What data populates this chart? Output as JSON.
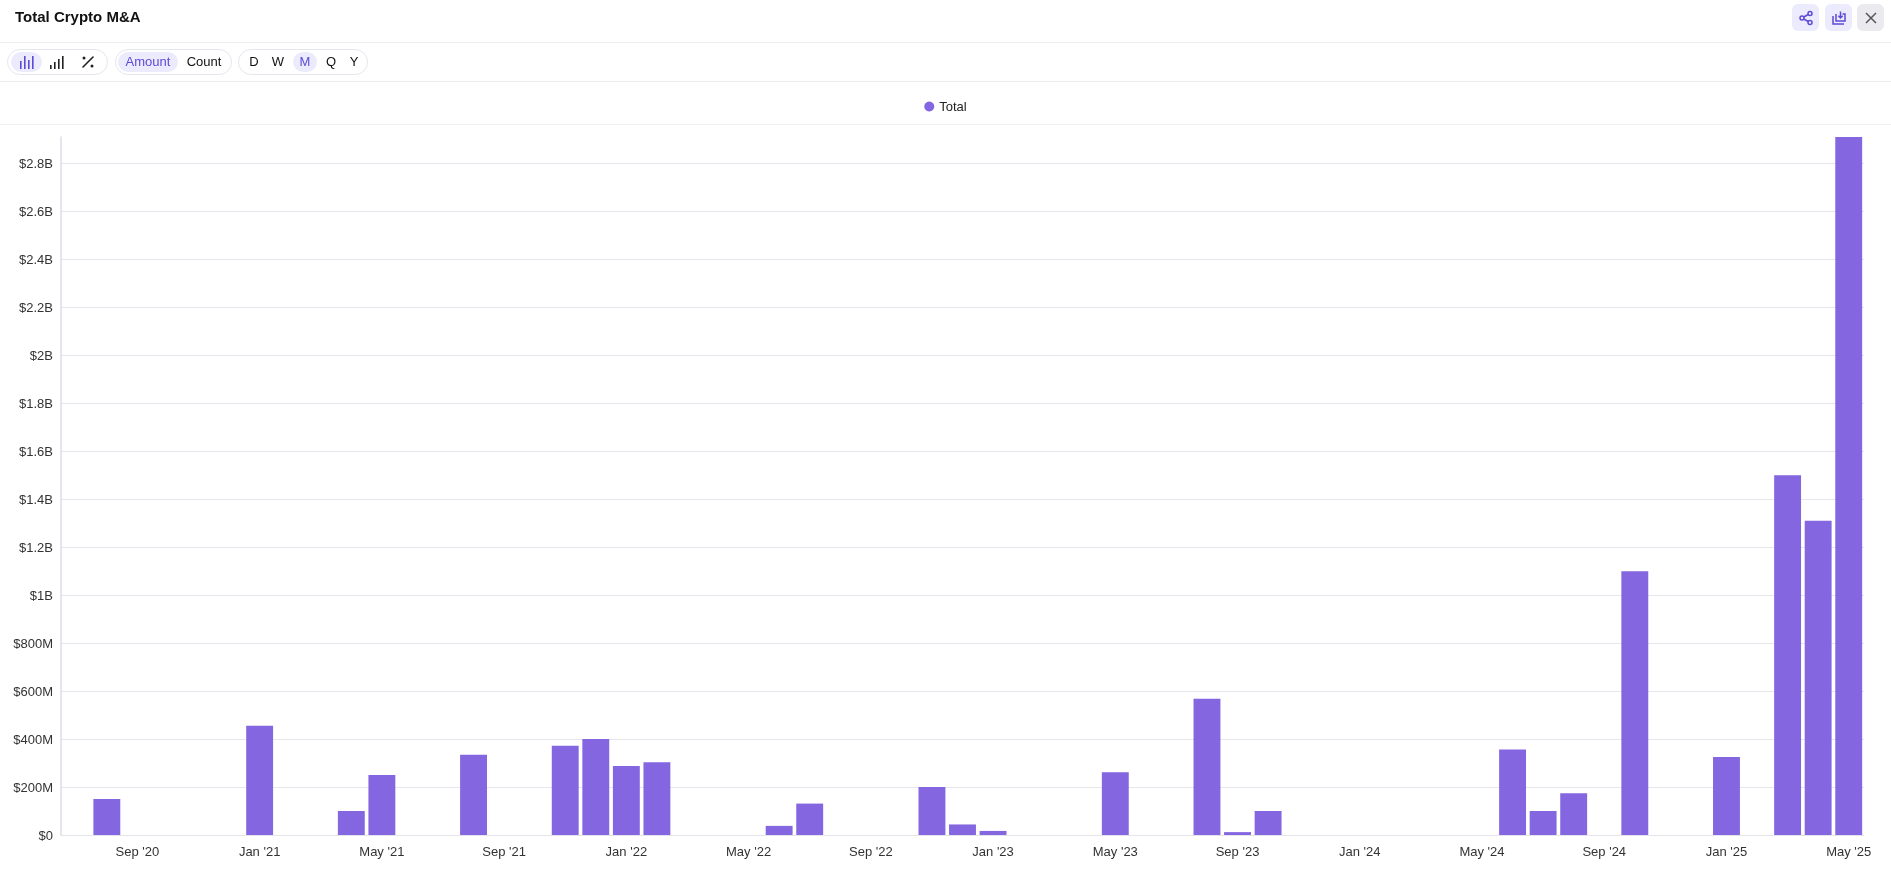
{
  "chart_data": {
    "type": "bar",
    "title": "Total Crypto M&A",
    "categories": [
      null,
      null,
      "Sep '20",
      null,
      null,
      null,
      "Jan '21",
      null,
      null,
      null,
      "May '21",
      null,
      null,
      null,
      "Sep '21",
      null,
      null,
      null,
      "Jan '22",
      null,
      null,
      null,
      "May '22",
      null,
      null,
      null,
      "Sep '22",
      null,
      null,
      null,
      "Jan '23",
      null,
      null,
      null,
      "May '23",
      null,
      null,
      null,
      "Sep '23",
      null,
      null,
      null,
      "Jan '24",
      null,
      null,
      null,
      "May '24",
      null,
      null,
      null,
      "Sep '24",
      null,
      null,
      null,
      "Jan '25",
      null,
      null,
      null,
      "May '25"
    ],
    "series": [
      {
        "name": "Total",
        "color": "#8366e0",
        "values": [
          null,
          150000000,
          null,
          null,
          null,
          null,
          455000000,
          null,
          null,
          100000000,
          250000000,
          null,
          null,
          335000000,
          null,
          null,
          372000000,
          400000000,
          288000000,
          303000000,
          null,
          null,
          null,
          38000000,
          131000000,
          null,
          null,
          null,
          200000000,
          44000000,
          17000000,
          null,
          null,
          null,
          262000000,
          null,
          null,
          568000000,
          12000000,
          100000000,
          null,
          null,
          null,
          null,
          null,
          null,
          null,
          356000000,
          100000000,
          174000000,
          null,
          1100000000,
          null,
          null,
          325000000,
          null,
          1500000000,
          1310000000,
          2910000000
        ]
      }
    ],
    "ylim": [
      0,
      2910000000
    ],
    "yticks": [
      {
        "value": 0,
        "label": "$0"
      },
      {
        "value": 200000000,
        "label": "$200M"
      },
      {
        "value": 400000000,
        "label": "$400M"
      },
      {
        "value": 600000000,
        "label": "$600M"
      },
      {
        "value": 800000000,
        "label": "$800M"
      },
      {
        "value": 1000000000,
        "label": "$1B"
      },
      {
        "value": 1200000000,
        "label": "$1.2B"
      },
      {
        "value": 1400000000,
        "label": "$1.4B"
      },
      {
        "value": 1600000000,
        "label": "$1.6B"
      },
      {
        "value": 1800000000,
        "label": "$1.8B"
      },
      {
        "value": 2000000000,
        "label": "$2B"
      },
      {
        "value": 2200000000,
        "label": "$2.2B"
      },
      {
        "value": 2400000000,
        "label": "$2.4B"
      },
      {
        "value": 2600000000,
        "label": "$2.6B"
      },
      {
        "value": 2800000000,
        "label": "$2.8B"
      }
    ],
    "grid": "y",
    "legend": "top",
    "annotations": [
      "Amount",
      "Count",
      "D",
      "W",
      "M",
      "Q",
      "Y"
    ]
  }
}
